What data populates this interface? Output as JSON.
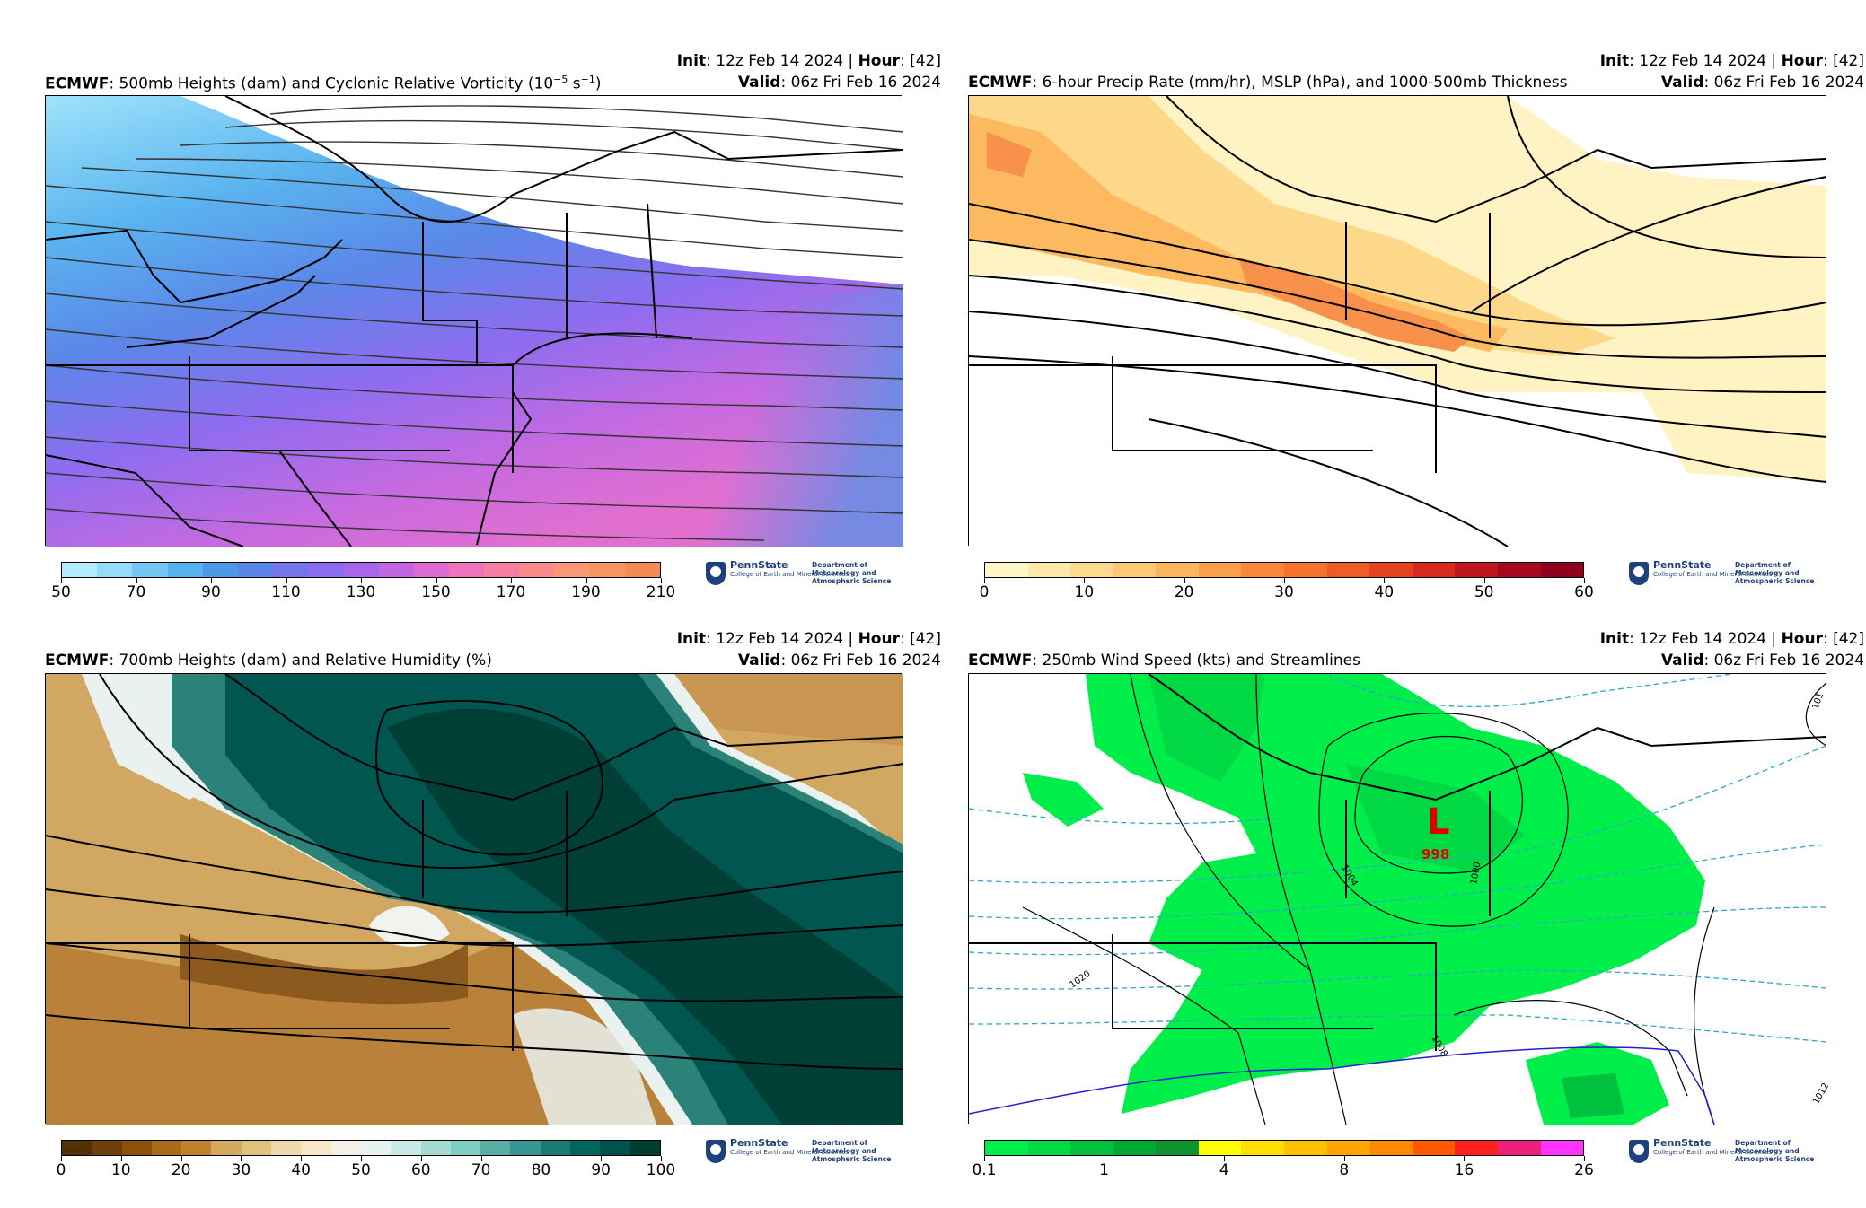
{
  "panels": [
    {
      "id": "p1",
      "model": "ECMWF",
      "title": ": 500mb Heights (dam) and Cyclonic Relative Vorticity (10",
      "title_sup": "−5",
      "title_tail": " s",
      "title_sup2": "−1",
      "title_close": ")",
      "init_label": "Init",
      "init_value": ": 12z Feb 14 2024 | ",
      "hour_label": "Hour",
      "hour_value": ": [42]",
      "valid_label": "Valid",
      "valid_value": ": 06z Fri Feb 16 2024",
      "colorbar": {
        "colors": [
          "#b3ecff",
          "#94dcfb",
          "#74c7f5",
          "#57b1ee",
          "#4d99e6",
          "#5c84e8",
          "#7475ec",
          "#8b6cf0",
          "#a766ec",
          "#c366e2",
          "#dc6bd2",
          "#ee72bc",
          "#f67ea3",
          "#f98a8b",
          "#fb9774",
          "#f79561",
          "#f48a56"
        ],
        "ticks": [
          "50",
          "70",
          "90",
          "110",
          "130",
          "150",
          "170",
          "190",
          "210"
        ]
      }
    },
    {
      "id": "p2",
      "model": "ECMWF",
      "title": ": 6-hour Precip Rate (mm/hr), MSLP (hPa), and 1000-500mb Thickness",
      "init_label": "Init",
      "init_value": ": 12z Feb 14 2024 | ",
      "hour_label": "Hour",
      "hour_value": ": [42]",
      "valid_label": "Valid",
      "valid_value": ": 06z Fri Feb 16 2024",
      "colorbar": {
        "colors": [
          "#fff6c6",
          "#ffe9a8",
          "#fedb8c",
          "#fdc977",
          "#fcb55f",
          "#fb9f4a",
          "#f98939",
          "#f5732c",
          "#ee5b25",
          "#e4421f",
          "#d52b1e",
          "#c0161d",
          "#a8081f",
          "#8f001f"
        ],
        "ticks": [
          "0",
          "10",
          "20",
          "30",
          "40",
          "50",
          "60"
        ]
      }
    },
    {
      "id": "p3",
      "model": "ECMWF",
      "title": ": 700mb Heights (dam) and Relative Humidity (%)",
      "init_label": "Init",
      "init_value": ": 12z Feb 14 2024 | ",
      "hour_label": "Hour",
      "hour_value": ": [42]",
      "valid_label": "Valid",
      "valid_value": ": 06z Fri Feb 16 2024",
      "colorbar": {
        "colors": [
          "#543005",
          "#6f3f0b",
          "#8c510a",
          "#a86b1c",
          "#bf812d",
          "#d4a962",
          "#dfc27d",
          "#ecd9ac",
          "#f6e8c3",
          "#f5f1e6",
          "#e7f3f1",
          "#c7eae5",
          "#a3dbd3",
          "#80cdc1",
          "#5aafa5",
          "#35978f",
          "#1b7b73",
          "#01665e",
          "#00524a",
          "#003c30"
        ],
        "ticks": [
          "0",
          "10",
          "20",
          "30",
          "40",
          "50",
          "60",
          "70",
          "80",
          "90",
          "100"
        ]
      }
    },
    {
      "id": "p4",
      "model": "ECMWF",
      "title": ": 250mb Wind Speed (kts) and Streamlines",
      "init_label": "Init",
      "init_value": ": 12z Feb 14 2024 | ",
      "hour_label": "Hour",
      "hour_value": ": [42]",
      "valid_label": "Valid",
      "valid_value": ": 06z Fri Feb 16 2024",
      "low_label": "L",
      "low_value": "998",
      "isobar_labels": [
        "1020",
        "1004",
        "1000",
        "1008",
        "1012",
        "101"
      ],
      "colorbar": {
        "colors": [
          "#00ee4a",
          "#00d844",
          "#00c13d",
          "#00a836",
          "#10922f",
          "#ffff00",
          "#ffe000",
          "#ffc000",
          "#ffa600",
          "#ff8a00",
          "#ff5a00",
          "#ff2020",
          "#f0207a",
          "#ff33ff"
        ],
        "ticks": [
          "0.1",
          "1",
          "4",
          "8",
          "16",
          "26"
        ]
      }
    }
  ],
  "logo": {
    "name": "PennState",
    "college": "College of Earth and Mineral Sciences",
    "dept_line1": "Department of",
    "dept_line2": "Meteorology and",
    "dept_line3": "Atmospheric Science"
  }
}
